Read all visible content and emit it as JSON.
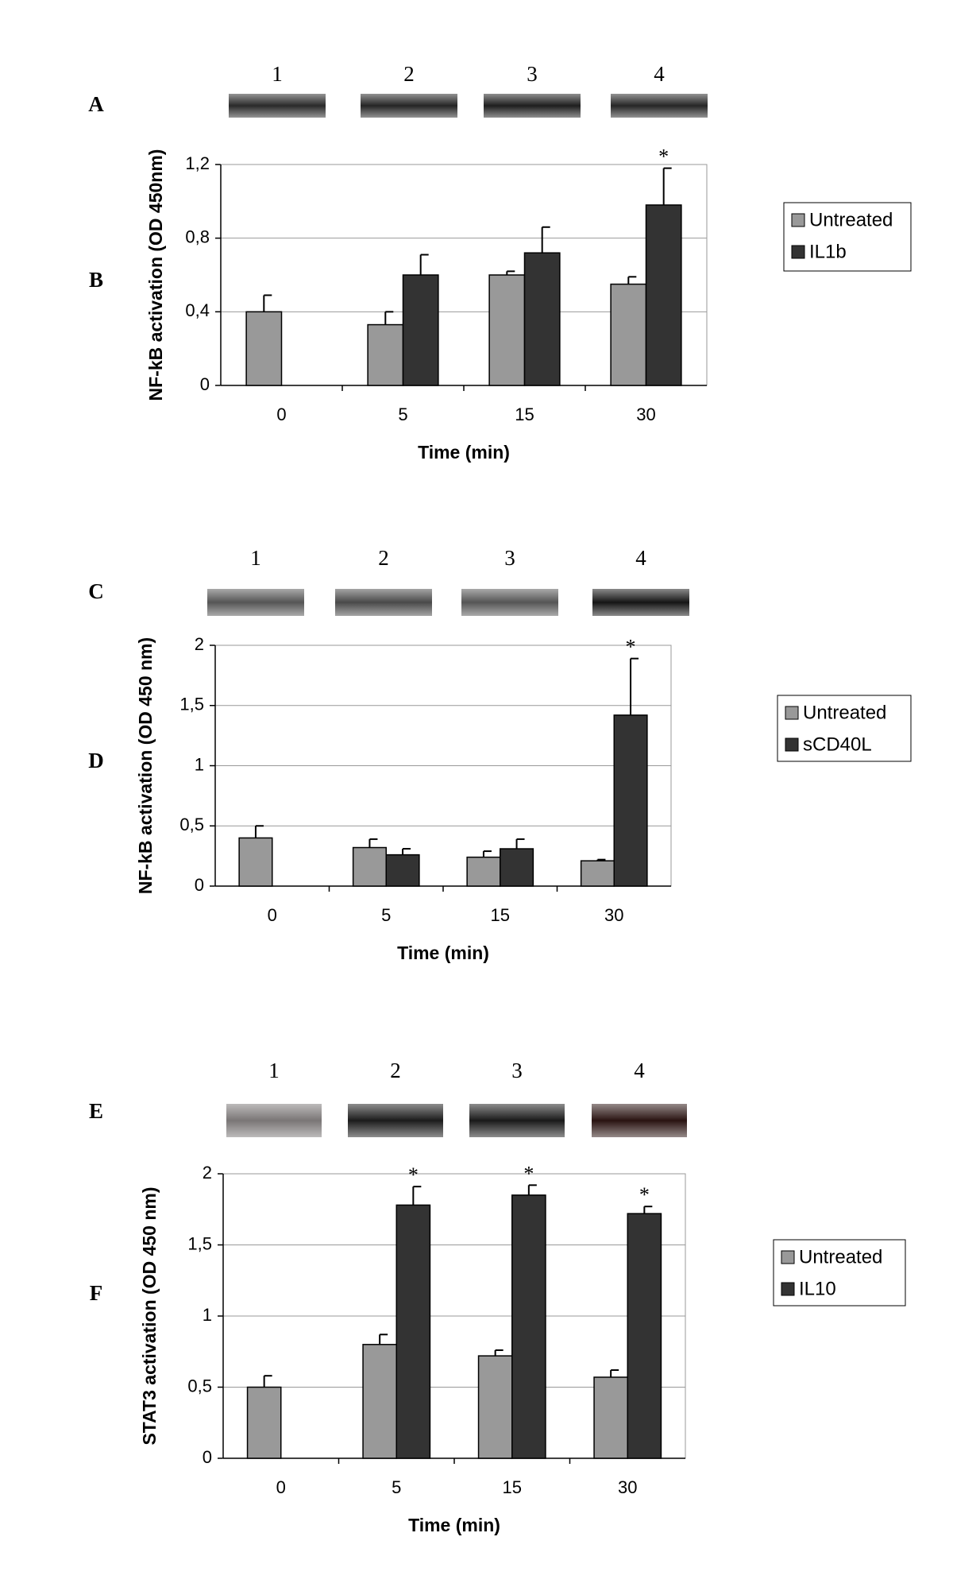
{
  "chart_data": [
    {
      "type": "bar",
      "blot_panel": "A",
      "chart_panel": "B",
      "lanes": [
        1,
        2,
        3,
        4
      ],
      "y_label": "NF-kB activation (OD 450nm)",
      "x_label": "Time (min)",
      "categories": [
        "0",
        "5",
        "15",
        "30"
      ],
      "series": [
        {
          "name": "Untreated",
          "color": "#999999",
          "values": [
            0.4,
            0.33,
            0.6,
            0.55
          ],
          "errors": [
            0.09,
            0.07,
            0.02,
            0.04
          ]
        },
        {
          "name": "IL1b",
          "color": "#333333",
          "values": [
            null,
            0.6,
            0.72,
            0.98
          ],
          "errors": [
            null,
            0.11,
            0.14,
            0.2
          ]
        }
      ],
      "annotations": [
        {
          "text": "*",
          "x": "30",
          "series": "IL1b"
        }
      ],
      "ylim": [
        0,
        1.2
      ],
      "yticks": [
        0,
        {
          "value": 0.4,
          "label": "0,4"
        },
        {
          "value": 0.8,
          "label": "0,8"
        },
        {
          "value": 1.2,
          "label": "1,2"
        }
      ],
      "grid": true,
      "legend": "right"
    },
    {
      "type": "bar",
      "blot_panel": "C",
      "chart_panel": "D",
      "lanes": [
        1,
        2,
        3,
        4
      ],
      "y_label": "NF-kB activation (OD 450 nm)",
      "x_label": "Time (min)",
      "categories": [
        "0",
        "5",
        "15",
        "30"
      ],
      "series": [
        {
          "name": "Untreated",
          "color": "#999999",
          "values": [
            0.4,
            0.32,
            0.24,
            0.21
          ],
          "errors": [
            0.1,
            0.07,
            0.05,
            0.01
          ]
        },
        {
          "name": "sCD40L",
          "color": "#333333",
          "values": [
            null,
            0.26,
            0.31,
            1.42
          ],
          "errors": [
            null,
            0.05,
            0.08,
            0.47
          ]
        }
      ],
      "annotations": [
        {
          "text": "*",
          "x": "30",
          "series": "sCD40L"
        }
      ],
      "ylim": [
        0,
        2
      ],
      "yticks": [
        0,
        {
          "value": 0.5,
          "label": "0,5"
        },
        1,
        {
          "value": 1.5,
          "label": "1,5"
        },
        2
      ],
      "grid": true,
      "legend": "right"
    },
    {
      "type": "bar",
      "blot_panel": "E",
      "chart_panel": "F",
      "lanes": [
        1,
        2,
        3,
        4
      ],
      "y_label": "STAT3 activation (OD 450 nm)",
      "x_label": "Time (min)",
      "categories": [
        "0",
        "5",
        "15",
        "30"
      ],
      "series": [
        {
          "name": "Untreated",
          "color": "#999999",
          "values": [
            0.5,
            0.8,
            0.72,
            0.57
          ],
          "errors": [
            0.08,
            0.07,
            0.04,
            0.05
          ]
        },
        {
          "name": "IL10",
          "color": "#333333",
          "values": [
            null,
            1.78,
            1.85,
            1.72
          ],
          "errors": [
            null,
            0.13,
            0.07,
            0.05
          ]
        }
      ],
      "annotations": [
        {
          "text": "*",
          "x": "5",
          "series": "IL10"
        },
        {
          "text": "*",
          "x": "15",
          "series": "IL10"
        },
        {
          "text": "*",
          "x": "30",
          "series": "IL10"
        }
      ],
      "ylim": [
        0,
        2
      ],
      "yticks": [
        0,
        {
          "value": 0.5,
          "label": "0,5"
        },
        1,
        {
          "value": 1.5,
          "label": "1,5"
        },
        2
      ],
      "grid": true,
      "legend": "right"
    }
  ]
}
